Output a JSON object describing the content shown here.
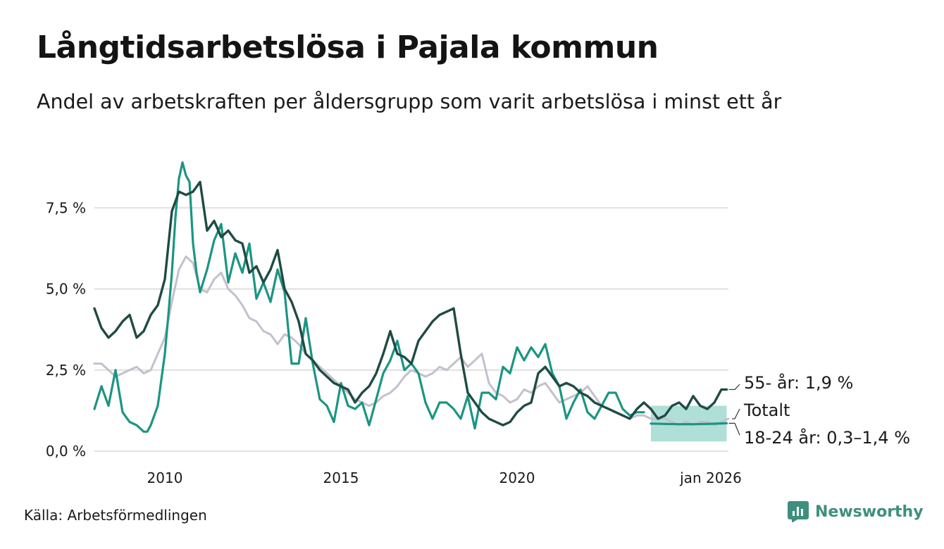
{
  "header": {
    "title": "Långtidsarbetslösa i Pajala kommun",
    "subtitle": "Andel av arbetskraften per åldersgrupp som varit arbetslösa i minst ett år"
  },
  "footer": {
    "source": "Källa: Arbetsförmedlingen",
    "brand": "Newsworthy"
  },
  "colors": {
    "older": "#1f4b43",
    "young": "#1b9583",
    "total": "#c4c0cc",
    "band": "#a6dcd2",
    "grid": "#d9d9d9",
    "brand": "#3f8f7e"
  },
  "chart_data": {
    "type": "line",
    "title": "Långtidsarbetslösa i Pajala kommun",
    "subtitle": "Andel av arbetskraften per åldersgrupp som varit arbetslösa i minst ett år",
    "xlabel": "",
    "ylabel": "",
    "unit": "%",
    "xlim": [
      2008.0,
      2026.0
    ],
    "ylim": [
      0,
      9.2
    ],
    "yticks": [
      {
        "value": 0,
        "label": "0,0 %"
      },
      {
        "value": 2.5,
        "label": "2,5 %"
      },
      {
        "value": 5,
        "label": "5,0 %"
      },
      {
        "value": 7.5,
        "label": "7,5 %"
      }
    ],
    "xticks": [
      {
        "value": 2010,
        "label": "2010"
      },
      {
        "value": 2015,
        "label": "2015"
      },
      {
        "value": 2020,
        "label": "2020"
      },
      {
        "value": 2025.5,
        "label": "jan 2026"
      }
    ],
    "grid": true,
    "series": [
      {
        "name": "Totalt",
        "label": "Totalt",
        "color": "#c4c0cc",
        "x": [
          2008.0,
          2008.2,
          2008.4,
          2008.6,
          2008.8,
          2009.0,
          2009.2,
          2009.4,
          2009.6,
          2009.8,
          2010.0,
          2010.2,
          2010.4,
          2010.6,
          2010.8,
          2011.0,
          2011.2,
          2011.4,
          2011.6,
          2011.8,
          2012.0,
          2012.2,
          2012.4,
          2012.6,
          2012.8,
          2013.0,
          2013.2,
          2013.4,
          2013.6,
          2013.8,
          2014.0,
          2014.2,
          2014.4,
          2014.6,
          2014.8,
          2015.0,
          2015.2,
          2015.4,
          2015.6,
          2015.8,
          2016.0,
          2016.2,
          2016.4,
          2016.6,
          2016.8,
          2017.0,
          2017.2,
          2017.4,
          2017.6,
          2017.8,
          2018.0,
          2018.2,
          2018.4,
          2018.6,
          2018.8,
          2019.0,
          2019.2,
          2019.4,
          2019.6,
          2019.8,
          2020.0,
          2020.2,
          2020.4,
          2020.6,
          2020.8,
          2021.0,
          2021.2,
          2021.4,
          2021.6,
          2021.8,
          2022.0,
          2022.2,
          2022.4,
          2022.6,
          2022.8,
          2023.0,
          2023.2,
          2023.4,
          2023.6,
          2023.8,
          2024.0,
          2024.2,
          2024.4,
          2024.6,
          2024.8,
          2025.0,
          2025.2,
          2025.4,
          2025.6,
          2025.8,
          2026.0
        ],
        "values": [
          2.7,
          2.7,
          2.5,
          2.3,
          2.4,
          2.5,
          2.6,
          2.4,
          2.5,
          3.0,
          3.5,
          4.6,
          5.6,
          6.0,
          5.8,
          5.0,
          4.9,
          5.3,
          5.5,
          5.0,
          4.8,
          4.5,
          4.1,
          4.0,
          3.7,
          3.6,
          3.3,
          3.6,
          3.5,
          3.3,
          3.0,
          2.8,
          2.6,
          2.4,
          2.2,
          2.0,
          1.8,
          1.6,
          1.5,
          1.4,
          1.5,
          1.7,
          1.8,
          2.0,
          2.3,
          2.5,
          2.4,
          2.3,
          2.4,
          2.6,
          2.5,
          2.7,
          2.9,
          2.6,
          2.8,
          3.0,
          2.1,
          1.8,
          1.7,
          1.5,
          1.6,
          1.9,
          1.8,
          2.0,
          2.1,
          1.8,
          1.5,
          1.6,
          1.7,
          1.8,
          2.0,
          1.7,
          1.4,
          1.3,
          1.2,
          1.1,
          1.0,
          1.1,
          1.1,
          1.0,
          1.0,
          1.0,
          0.9,
          0.8,
          0.9,
          0.8,
          0.9,
          0.9,
          0.8,
          0.9,
          1.0
        ]
      },
      {
        "name": "18-24 år",
        "label": "18-24 år: 0,3–1,4 %",
        "color": "#1b9583",
        "x": [
          2008.0,
          2008.2,
          2008.4,
          2008.6,
          2008.8,
          2009.0,
          2009.2,
          2009.4,
          2009.5,
          2009.6,
          2009.8,
          2010.0,
          2010.1,
          2010.2,
          2010.3,
          2010.4,
          2010.5,
          2010.6,
          2010.7,
          2010.8,
          2010.9,
          2011.0,
          2011.2,
          2011.4,
          2011.6,
          2011.8,
          2012.0,
          2012.2,
          2012.4,
          2012.6,
          2012.8,
          2013.0,
          2013.2,
          2013.4,
          2013.6,
          2013.8,
          2014.0,
          2014.2,
          2014.4,
          2014.6,
          2014.8,
          2015.0,
          2015.2,
          2015.4,
          2015.6,
          2015.8,
          2016.0,
          2016.2,
          2016.4,
          2016.6,
          2016.8,
          2017.0,
          2017.2,
          2017.4,
          2017.6,
          2017.8,
          2018.0,
          2018.2,
          2018.4,
          2018.6,
          2018.8,
          2019.0,
          2019.2,
          2019.4,
          2019.6,
          2019.8,
          2020.0,
          2020.2,
          2020.4,
          2020.6,
          2020.8,
          2021.0,
          2021.2,
          2021.4,
          2021.6,
          2021.8,
          2022.0,
          2022.2,
          2022.4,
          2022.6,
          2022.8,
          2023.0,
          2023.2,
          2023.4,
          2023.6
        ],
        "values": [
          1.3,
          2.0,
          1.4,
          2.5,
          1.2,
          0.9,
          0.8,
          0.6,
          0.6,
          0.8,
          1.4,
          3.0,
          4.2,
          5.5,
          7.2,
          8.4,
          8.9,
          8.5,
          8.3,
          6.4,
          5.5,
          4.9,
          5.6,
          6.5,
          7.0,
          5.2,
          6.1,
          5.5,
          6.4,
          4.7,
          5.2,
          4.6,
          5.6,
          4.9,
          2.7,
          2.7,
          4.1,
          2.7,
          1.6,
          1.4,
          0.9,
          2.1,
          1.4,
          1.3,
          1.5,
          0.8,
          1.6,
          2.4,
          2.8,
          3.4,
          2.5,
          2.7,
          2.4,
          1.5,
          1.0,
          1.5,
          1.5,
          1.3,
          1.0,
          1.7,
          0.7,
          1.8,
          1.8,
          1.6,
          2.6,
          2.4,
          3.2,
          2.8,
          3.2,
          2.9,
          3.3,
          2.4,
          2.0,
          1.0,
          1.5,
          1.9,
          1.2,
          1.0,
          1.4,
          1.8,
          1.8,
          1.3,
          1.1,
          1.2,
          1.2
        ]
      },
      {
        "name": "55- år",
        "label": "55- år: 1,9 %",
        "color": "#1f4b43",
        "x": [
          2008.0,
          2008.2,
          2008.4,
          2008.6,
          2008.8,
          2009.0,
          2009.2,
          2009.4,
          2009.6,
          2009.8,
          2010.0,
          2010.2,
          2010.4,
          2010.6,
          2010.8,
          2011.0,
          2011.2,
          2011.4,
          2011.6,
          2011.8,
          2012.0,
          2012.2,
          2012.4,
          2012.6,
          2012.8,
          2013.0,
          2013.2,
          2013.4,
          2013.6,
          2013.8,
          2014.0,
          2014.2,
          2014.4,
          2014.6,
          2014.8,
          2015.0,
          2015.2,
          2015.4,
          2015.6,
          2015.8,
          2016.0,
          2016.2,
          2016.4,
          2016.6,
          2016.8,
          2017.0,
          2017.2,
          2017.4,
          2017.6,
          2017.8,
          2018.0,
          2018.2,
          2018.4,
          2018.6,
          2018.8,
          2019.0,
          2019.2,
          2019.4,
          2019.6,
          2019.8,
          2020.0,
          2020.2,
          2020.4,
          2020.6,
          2020.8,
          2021.0,
          2021.2,
          2021.4,
          2021.6,
          2021.8,
          2022.0,
          2022.2,
          2022.4,
          2022.6,
          2022.8,
          2023.0,
          2023.2,
          2023.4,
          2023.6,
          2023.8,
          2024.0,
          2024.2,
          2024.4,
          2024.6,
          2024.8,
          2025.0,
          2025.2,
          2025.4,
          2025.6,
          2025.8,
          2025.95
        ],
        "values": [
          4.4,
          3.8,
          3.5,
          3.7,
          4.0,
          4.2,
          3.5,
          3.7,
          4.2,
          4.5,
          5.3,
          7.4,
          8.0,
          7.9,
          8.0,
          8.3,
          6.8,
          7.1,
          6.6,
          6.8,
          6.5,
          6.4,
          5.5,
          5.7,
          5.2,
          5.6,
          6.2,
          5.0,
          4.6,
          4.0,
          3.0,
          2.8,
          2.5,
          2.3,
          2.1,
          2.0,
          1.9,
          1.5,
          1.8,
          2.0,
          2.4,
          3.0,
          3.7,
          3.0,
          2.9,
          2.7,
          3.4,
          3.7,
          4.0,
          4.2,
          4.3,
          4.4,
          3.0,
          1.8,
          1.5,
          1.2,
          1.0,
          0.9,
          0.8,
          0.9,
          1.2,
          1.4,
          1.5,
          2.4,
          2.6,
          2.3,
          2.0,
          2.1,
          2.0,
          1.8,
          1.7,
          1.5,
          1.4,
          1.3,
          1.2,
          1.1,
          1.0,
          1.3,
          1.5,
          1.3,
          1.0,
          1.1,
          1.4,
          1.5,
          1.3,
          1.7,
          1.4,
          1.3,
          1.5,
          1.9,
          1.9
        ]
      },
      {
        "name": "18-24 år prognos",
        "color": "#1b9583",
        "x": [
          2023.8,
          2024.2,
          2024.6,
          2025.0,
          2025.4,
          2025.95
        ],
        "values": [
          0.85,
          0.84,
          0.83,
          0.83,
          0.84,
          0.86
        ]
      }
    ],
    "band": {
      "name": "18-24 år intervall",
      "x_start": 2023.8,
      "x_end": 2025.95,
      "low": 0.3,
      "high": 1.4
    },
    "annotations": [
      {
        "series": "55- år",
        "text": "55- år: 1,9 %"
      },
      {
        "series": "Totalt",
        "text": "Totalt"
      },
      {
        "series": "18-24 år",
        "text": "18-24 år: 0,3–1,4 %"
      }
    ]
  }
}
